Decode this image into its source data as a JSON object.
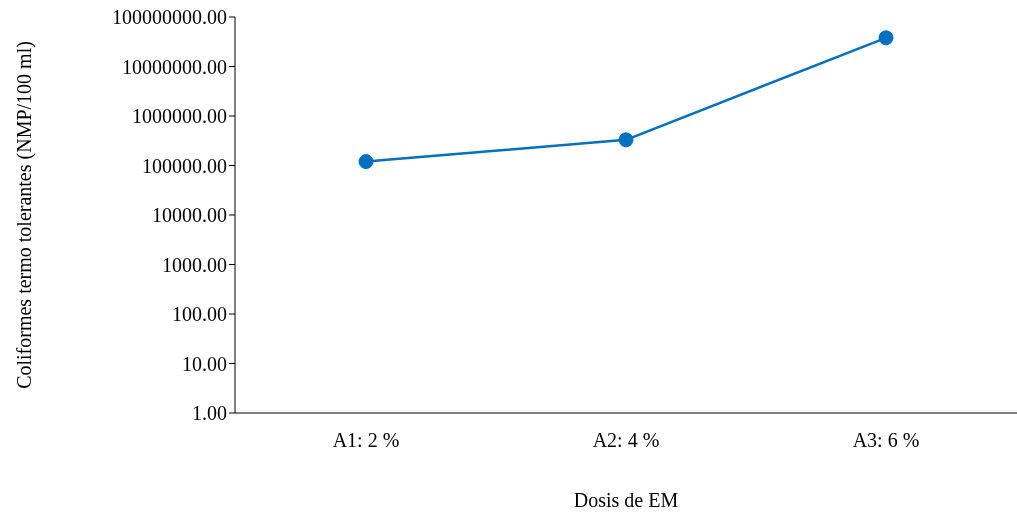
{
  "chart_data": {
    "type": "line",
    "xlabel": "Dosis de EM",
    "ylabel": "Coliformes termo tolerantes (NMP/100 ml)",
    "categories": [
      "A1: 2 %",
      "A2: 4 %",
      "A3: 6 %"
    ],
    "series": [
      {
        "color": "#0070c0",
        "values": [
          120000,
          330000,
          38000000
        ]
      }
    ],
    "log": "y",
    "ylim": [
      1,
      100000000
    ],
    "yticks": [
      {
        "value": 1,
        "label": "1.00"
      },
      {
        "value": 10,
        "label": "10.00"
      },
      {
        "value": 100,
        "label": "100.00"
      },
      {
        "value": 1000,
        "label": "1000.00"
      },
      {
        "value": 10000,
        "label": "10000.00"
      },
      {
        "value": 100000,
        "label": "100000.00"
      },
      {
        "value": 1000000,
        "label": "1000000.00"
      },
      {
        "value": 10000000,
        "label": "10000000.00"
      },
      {
        "value": 100000000,
        "label": "100000000.00"
      }
    ],
    "marker": "circle",
    "grid": false,
    "legend": false
  }
}
